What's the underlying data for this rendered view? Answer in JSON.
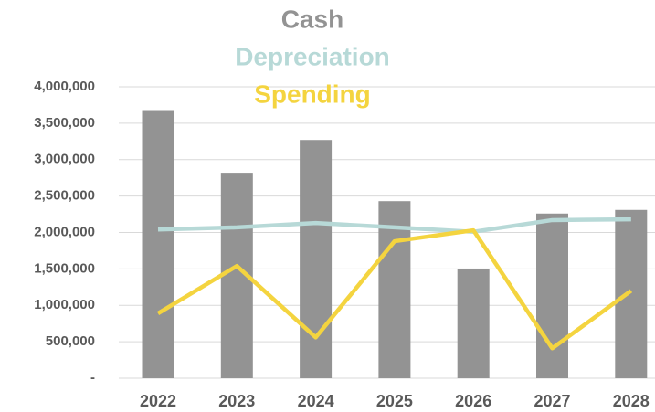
{
  "chart_data": {
    "type": "bar",
    "categories": [
      "2022",
      "2023",
      "2024",
      "2025",
      "2026",
      "2027",
      "2028"
    ],
    "series": [
      {
        "name": "Cash",
        "type": "bar",
        "color": "#939393",
        "values": [
          3680000,
          2820000,
          3270000,
          2430000,
          1500000,
          2260000,
          2310000
        ]
      },
      {
        "name": "Depreciation",
        "type": "line",
        "color": "#b7d9d7",
        "values": [
          2040000,
          2070000,
          2130000,
          2070000,
          2010000,
          2170000,
          2180000
        ]
      },
      {
        "name": "Spending",
        "type": "line",
        "color": "#f4d43f",
        "values": [
          890000,
          1540000,
          560000,
          1880000,
          2030000,
          410000,
          1200000
        ]
      }
    ],
    "ylim": [
      0,
      4000000
    ],
    "yticks": [
      {
        "value": 0,
        "label": "-"
      },
      {
        "value": 500000,
        "label": "500,000"
      },
      {
        "value": 1000000,
        "label": "1,000,000"
      },
      {
        "value": 1500000,
        "label": "1,500,000"
      },
      {
        "value": 2000000,
        "label": "2,000,000"
      },
      {
        "value": 2500000,
        "label": "2,500,000"
      },
      {
        "value": 3000000,
        "label": "3,000,000"
      },
      {
        "value": 3500000,
        "label": "3,500,000"
      },
      {
        "value": 4000000,
        "label": "4,000,000"
      }
    ],
    "grid": true
  }
}
